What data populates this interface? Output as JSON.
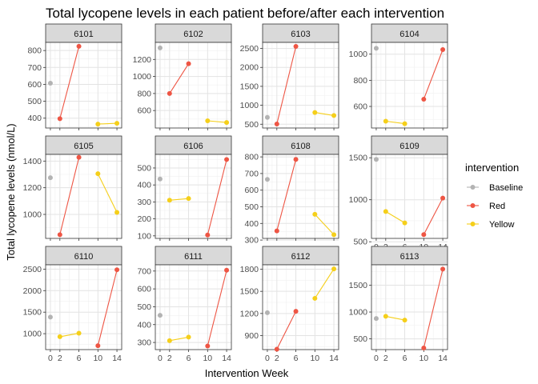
{
  "chart_data": {
    "type": "line",
    "title": "Total lycopene levels in each patient before/after each intervention",
    "xlabel": "Intervention Week",
    "ylabel": "Total lycopene levels (nmol/L)",
    "x_ticks": [
      0,
      2,
      6,
      10,
      14
    ],
    "legend": {
      "title": "intervention",
      "position": "right",
      "items": [
        {
          "name": "Baseline",
          "color": "#B3B3B3"
        },
        {
          "name": "Red",
          "color": "#EE5544"
        },
        {
          "name": "Yellow",
          "color": "#F5CF1A"
        }
      ]
    },
    "panels": [
      {
        "label": "6101",
        "yticks": [
          400,
          500,
          600,
          700,
          800
        ],
        "ylim": [
          342,
          848
        ],
        "series": [
          {
            "name": "Baseline",
            "points": [
              [
                0,
                607
              ]
            ]
          },
          {
            "name": "Red",
            "points": [
              [
                2,
                397
              ],
              [
                6,
                825
              ]
            ]
          },
          {
            "name": "Yellow",
            "points": [
              [
                10,
                365
              ],
              [
                14,
                370
              ]
            ]
          }
        ]
      },
      {
        "label": "6102",
        "yticks": [
          600,
          800,
          1000,
          1200
        ],
        "ylim": [
          395,
          1400
        ],
        "series": [
          {
            "name": "Baseline",
            "points": [
              [
                0,
                1335
              ]
            ]
          },
          {
            "name": "Red",
            "points": [
              [
                2,
                800
              ],
              [
                6,
                1150
              ]
            ]
          },
          {
            "name": "Yellow",
            "points": [
              [
                10,
                480
              ],
              [
                14,
                460
              ]
            ]
          }
        ]
      },
      {
        "label": "6103",
        "yticks": [
          500,
          1000,
          1500,
          2000,
          2500
        ],
        "ylim": [
          400,
          2660
        ],
        "series": [
          {
            "name": "Baseline",
            "points": [
              [
                0,
                680
              ]
            ]
          },
          {
            "name": "Red",
            "points": [
              [
                2,
                505
              ],
              [
                6,
                2555
              ]
            ]
          },
          {
            "name": "Yellow",
            "points": [
              [
                10,
                810
              ],
              [
                14,
                730
              ]
            ]
          }
        ]
      },
      {
        "label": "6104",
        "yticks": [
          600,
          800,
          1000
        ],
        "ylim": [
          435,
          1090
        ],
        "series": [
          {
            "name": "Baseline",
            "points": [
              [
                0,
                1045
              ]
            ]
          },
          {
            "name": "Red",
            "points": [
              [
                10,
                655
              ],
              [
                14,
                1035
              ]
            ]
          },
          {
            "name": "Yellow",
            "points": [
              [
                2,
                487
              ],
              [
                6,
                468
              ]
            ]
          }
        ]
      },
      {
        "label": "6105",
        "yticks": [
          1000,
          1200,
          1400
        ],
        "ylim": [
          820,
          1450
        ],
        "series": [
          {
            "name": "Baseline",
            "points": [
              [
                0,
                1275
              ]
            ]
          },
          {
            "name": "Red",
            "points": [
              [
                2,
                848
              ],
              [
                6,
                1428
              ]
            ]
          },
          {
            "name": "Yellow",
            "points": [
              [
                10,
                1305
              ],
              [
                14,
                1015
              ]
            ]
          }
        ]
      },
      {
        "label": "6106",
        "yticks": [
          100,
          200,
          300,
          400,
          500
        ],
        "ylim": [
          85,
          580
        ],
        "series": [
          {
            "name": "Baseline",
            "points": [
              [
                0,
                435
              ]
            ]
          },
          {
            "name": "Red",
            "points": [
              [
                10,
                105
              ],
              [
                14,
                550
              ]
            ]
          },
          {
            "name": "Yellow",
            "points": [
              [
                2,
                310
              ],
              [
                6,
                320
              ]
            ]
          }
        ]
      },
      {
        "label": "6108",
        "yticks": [
          300,
          400,
          500,
          600,
          700,
          800
        ],
        "ylim": [
          310,
          815
        ],
        "series": [
          {
            "name": "Baseline",
            "points": [
              [
                0,
                665
              ]
            ]
          },
          {
            "name": "Red",
            "points": [
              [
                2,
                355
              ],
              [
                6,
                785
              ]
            ]
          },
          {
            "name": "Yellow",
            "points": [
              [
                10,
                455
              ],
              [
                14,
                332
              ]
            ]
          }
        ]
      },
      {
        "label": "6109",
        "yticks": [
          500,
          1000,
          1500
        ],
        "ylim": [
          540,
          1540
        ],
        "series": [
          {
            "name": "Baseline",
            "points": [
              [
                0,
                1480
              ]
            ]
          },
          {
            "name": "Red",
            "points": [
              [
                10,
                585
              ],
              [
                14,
                1020
              ]
            ]
          },
          {
            "name": "Yellow",
            "points": [
              [
                2,
                860
              ],
              [
                6,
                725
              ]
            ]
          }
        ]
      },
      {
        "label": "6110",
        "yticks": [
          1000,
          1500,
          2000,
          2500
        ],
        "ylim": [
          630,
          2600
        ],
        "series": [
          {
            "name": "Baseline",
            "points": [
              [
                0,
                1385
              ]
            ]
          },
          {
            "name": "Red",
            "points": [
              [
                10,
                720
              ],
              [
                14,
                2485
              ]
            ]
          },
          {
            "name": "Yellow",
            "points": [
              [
                2,
                930
              ],
              [
                6,
                1010
              ]
            ]
          }
        ]
      },
      {
        "label": "6111",
        "yticks": [
          300,
          400,
          500,
          600,
          700
        ],
        "ylim": [
          260,
          735
        ],
        "series": [
          {
            "name": "Baseline",
            "points": [
              [
                0,
                452
              ]
            ]
          },
          {
            "name": "Red",
            "points": [
              [
                10,
                280
              ],
              [
                14,
                705
              ]
            ]
          },
          {
            "name": "Yellow",
            "points": [
              [
                2,
                310
              ],
              [
                6,
                330
              ]
            ]
          }
        ]
      },
      {
        "label": "6112",
        "yticks": [
          900,
          1200,
          1500,
          1800
        ],
        "ylim": [
          710,
          1860
        ],
        "series": [
          {
            "name": "Baseline",
            "points": [
              [
                0,
                1210
              ]
            ]
          },
          {
            "name": "Red",
            "points": [
              [
                2,
                715
              ],
              [
                6,
                1230
              ]
            ]
          },
          {
            "name": "Yellow",
            "points": [
              [
                10,
                1405
              ],
              [
                14,
                1805
              ]
            ]
          }
        ]
      },
      {
        "label": "6113",
        "yticks": [
          500,
          1000,
          1500
        ],
        "ylim": [
          300,
          1880
        ],
        "series": [
          {
            "name": "Baseline",
            "points": [
              [
                0,
                880
              ]
            ]
          },
          {
            "name": "Red",
            "points": [
              [
                10,
                330
              ],
              [
                14,
                1800
              ]
            ]
          },
          {
            "name": "Yellow",
            "points": [
              [
                2,
                920
              ],
              [
                6,
                850
              ]
            ]
          }
        ]
      }
    ]
  }
}
